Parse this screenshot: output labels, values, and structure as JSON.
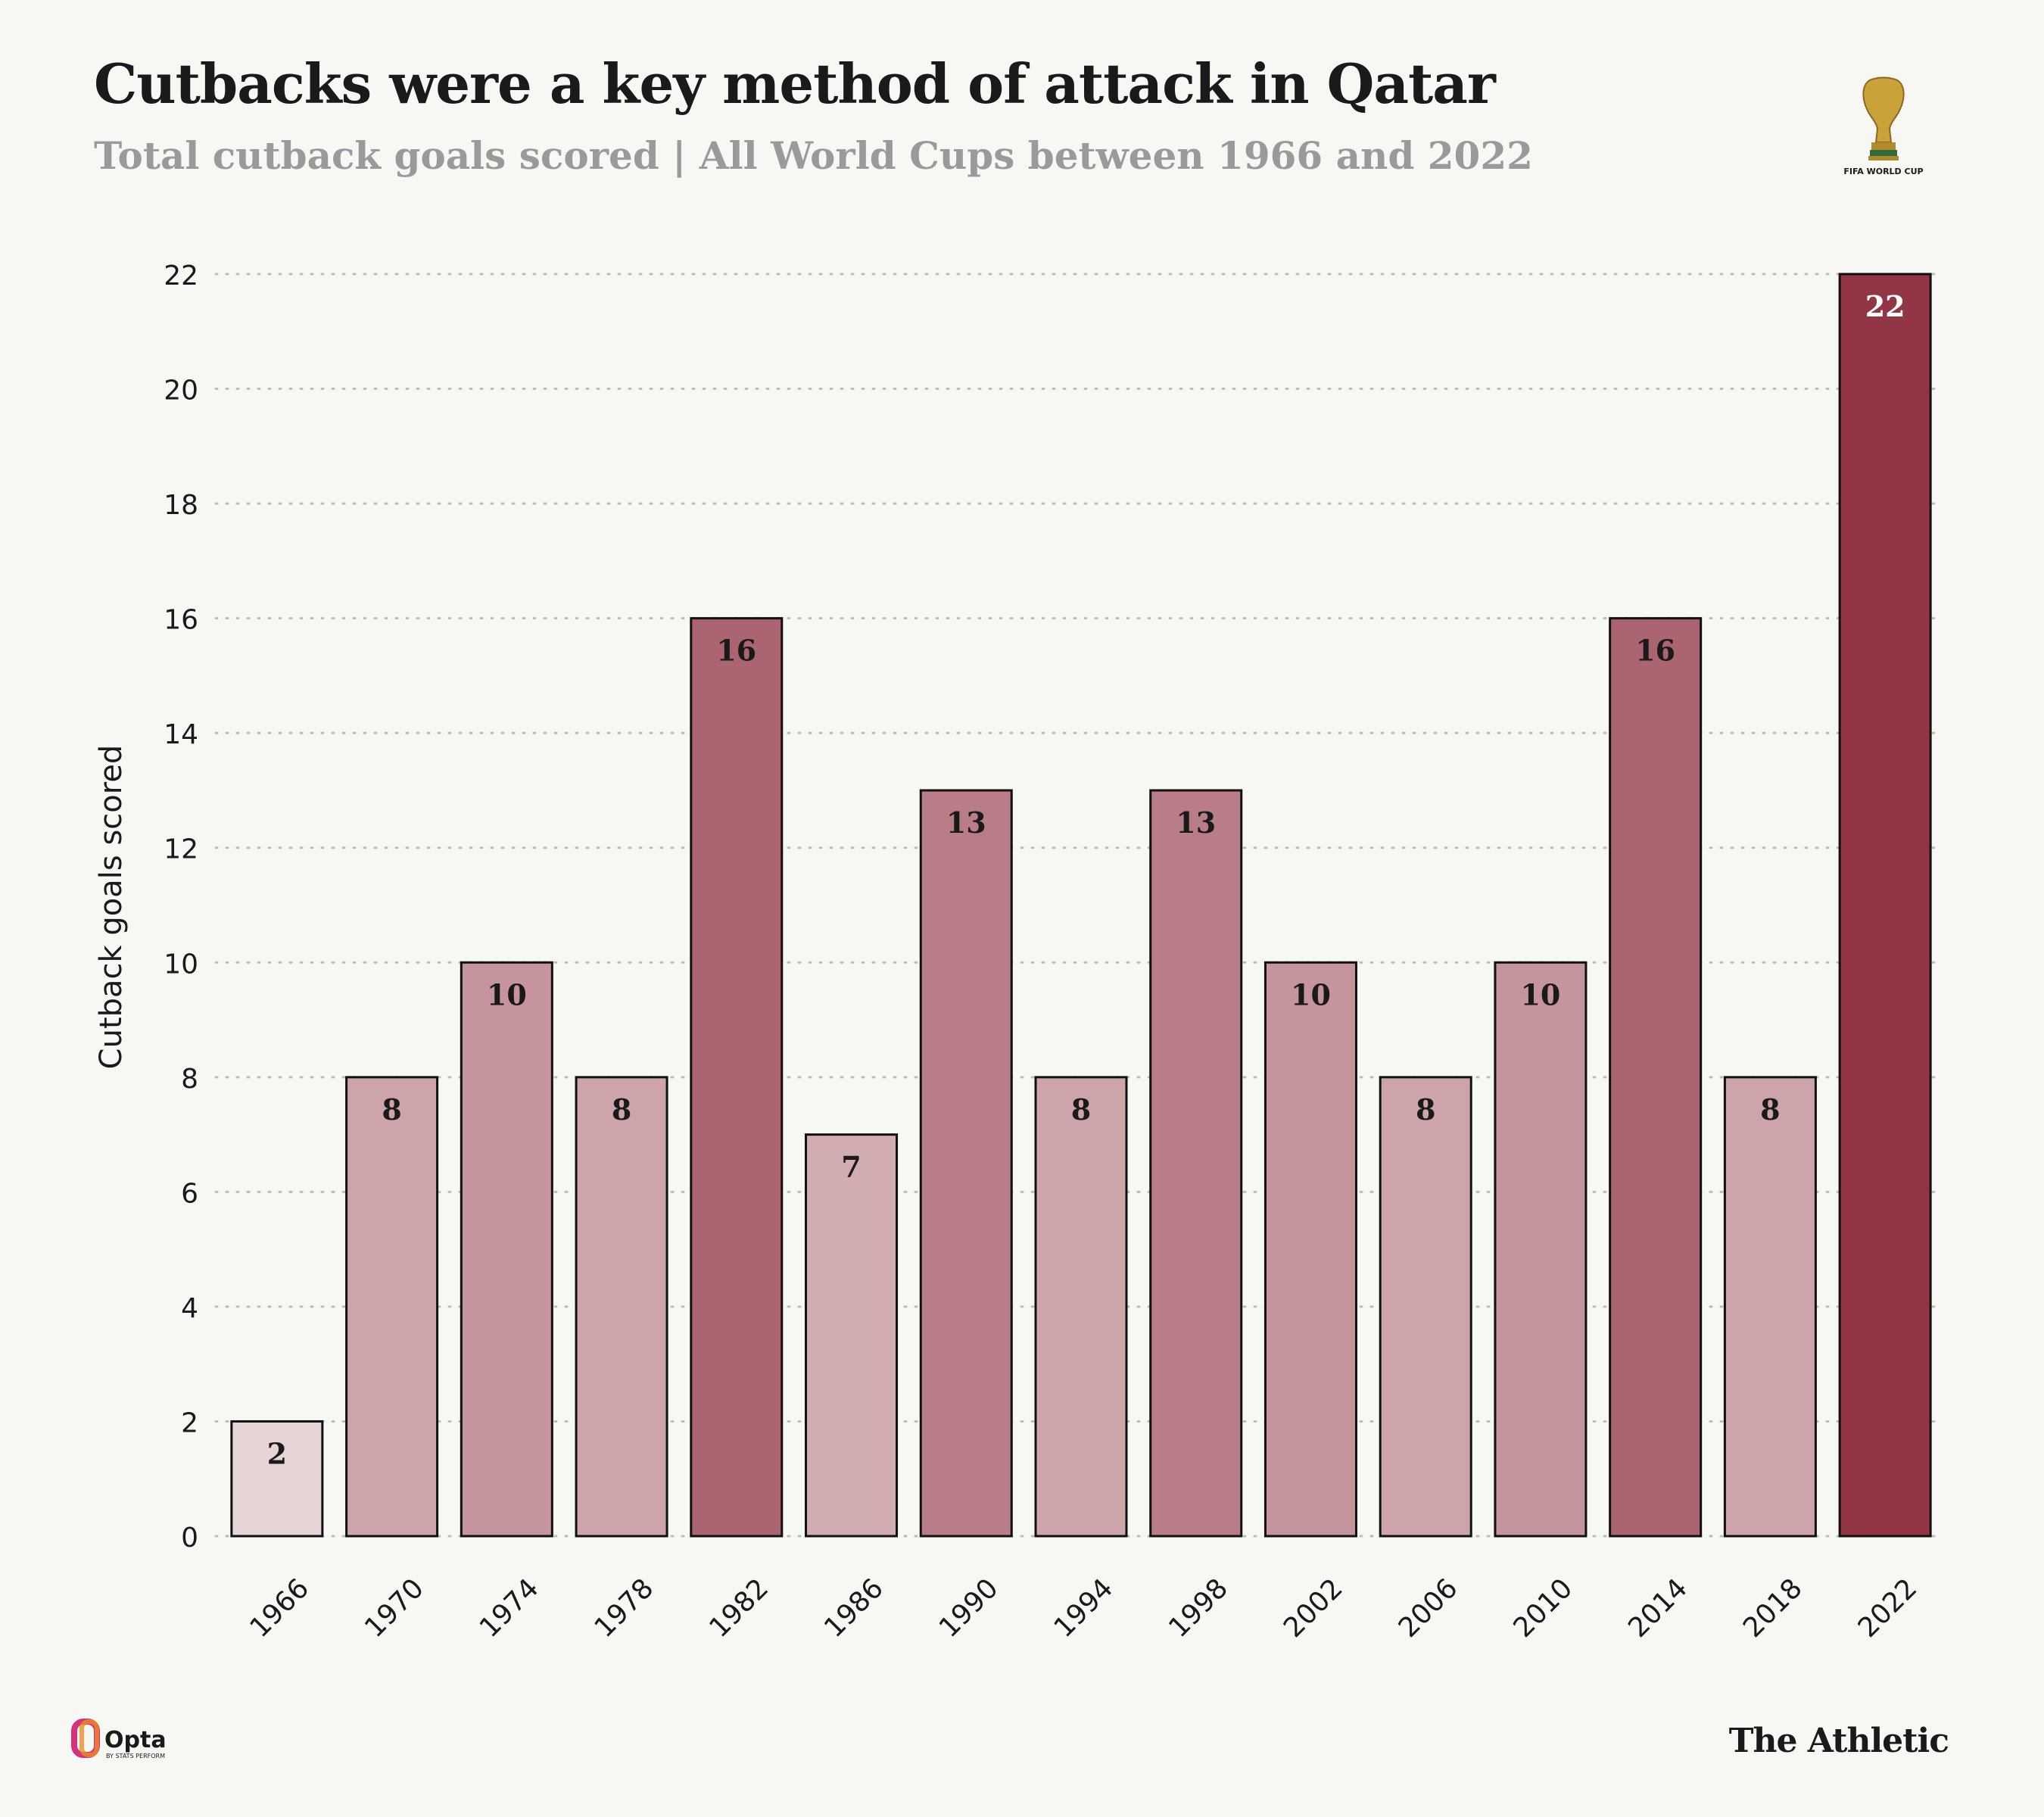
{
  "title": "Cutbacks were a key method of attack in Qatar",
  "subtitle": "Total cutback goals scored | All World Cups between 1966 and 2022",
  "logos": {
    "trophy_caption": "FIFA WORLD CUP",
    "opta": "Opta",
    "opta_sub": "BY STATS PERFORM",
    "publisher": "The Athletic"
  },
  "chart_data": {
    "type": "bar",
    "categories": [
      "1966",
      "1970",
      "1974",
      "1978",
      "1982",
      "1986",
      "1990",
      "1994",
      "1998",
      "2002",
      "2006",
      "2010",
      "2014",
      "2018",
      "2022"
    ],
    "values": [
      2,
      8,
      10,
      8,
      16,
      7,
      13,
      8,
      13,
      10,
      8,
      10,
      16,
      8,
      22
    ],
    "xlabel": "",
    "ylabel": "Cutback goals scored",
    "ylim": [
      0,
      22
    ],
    "yticks": [
      0,
      2,
      4,
      6,
      8,
      10,
      12,
      14,
      16,
      18,
      20,
      22
    ],
    "grid": "horizontal dotted",
    "data_labels": true,
    "color_scale": {
      "low": "#efe4e4",
      "high": "#923545"
    }
  }
}
